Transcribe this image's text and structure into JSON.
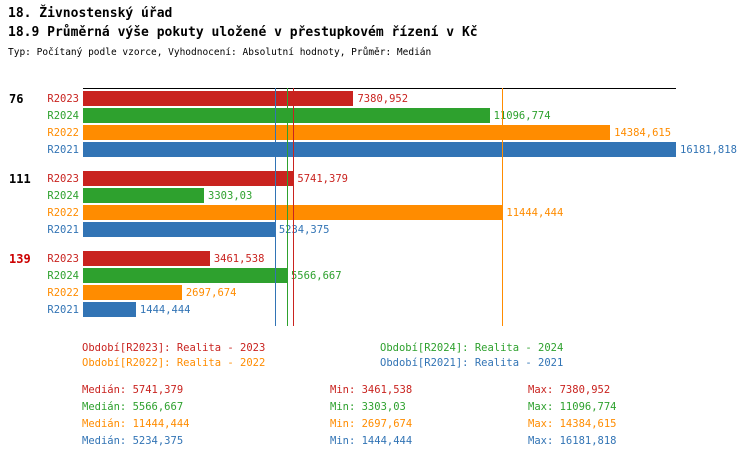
{
  "header": {
    "title": "18. Živnostenský úřad",
    "subtitle": "18.9 Průměrná výše pokuty uložené v přestupkovém řízení v Kč",
    "meta": "Typ: Počítaný podle vzorce, Vyhodnocení: Absolutní hodnoty, Průměr: Medián"
  },
  "chart_data": {
    "type": "bar",
    "orientation": "horizontal",
    "title": "18.9 Průměrná výše pokuty uložené v přestupkovém řízení v Kč",
    "xlabel": "",
    "ylabel": "",
    "xlim": [
      0,
      16181.818
    ],
    "grid": false,
    "series_colors": {
      "R2023": "#c9231f",
      "R2024": "#2ea12e",
      "R2022": "#ff8c00",
      "R2021": "#3274b5"
    },
    "groups": [
      {
        "label": "76",
        "label_color": "#000000",
        "bars": [
          {
            "series": "R2023",
            "value": 7380.952,
            "display": "7380,952"
          },
          {
            "series": "R2024",
            "value": 11096.774,
            "display": "11096,774"
          },
          {
            "series": "R2022",
            "value": 14384.615,
            "display": "14384,615"
          },
          {
            "series": "R2021",
            "value": 16181.818,
            "display": "16181,818"
          }
        ]
      },
      {
        "label": "111",
        "label_color": "#000000",
        "bars": [
          {
            "series": "R2023",
            "value": 5741.379,
            "display": "5741,379"
          },
          {
            "series": "R2024",
            "value": 3303.03,
            "display": "3303,03"
          },
          {
            "series": "R2022",
            "value": 11444.444,
            "display": "11444,444"
          },
          {
            "series": "R2021",
            "value": 5234.375,
            "display": "5234,375"
          }
        ]
      },
      {
        "label": "139",
        "label_color": "#cc0000",
        "bars": [
          {
            "series": "R2023",
            "value": 3461.538,
            "display": "3461,538"
          },
          {
            "series": "R2024",
            "value": 5566.667,
            "display": "5566,667"
          },
          {
            "series": "R2022",
            "value": 2697.674,
            "display": "2697,674"
          },
          {
            "series": "R2021",
            "value": 1444.444,
            "display": "1444,444"
          }
        ]
      }
    ],
    "median_lines": [
      {
        "series": "R2023",
        "value": 5741.379
      },
      {
        "series": "R2024",
        "value": 5566.667
      },
      {
        "series": "R2022",
        "value": 11444.444
      },
      {
        "series": "R2021",
        "value": 5234.375
      }
    ]
  },
  "legend": {
    "items": [
      {
        "series": "R2023",
        "label": "Období[R2023]: Realita - 2023"
      },
      {
        "series": "R2024",
        "label": "Období[R2024]: Realita - 2024"
      },
      {
        "series": "R2022",
        "label": "Období[R2022]: Realita - 2022"
      },
      {
        "series": "R2021",
        "label": "Období[R2021]: Realita - 2021"
      }
    ]
  },
  "stats": {
    "rows": [
      {
        "series": "R2023",
        "median": "Medián: 5741,379",
        "min": "Min: 3461,538",
        "max": "Max: 7380,952"
      },
      {
        "series": "R2024",
        "median": "Medián: 5566,667",
        "min": "Min: 3303,03",
        "max": "Max: 11096,774"
      },
      {
        "series": "R2022",
        "median": "Medián: 11444,444",
        "min": "Min: 2697,674",
        "max": "Max: 14384,615"
      },
      {
        "series": "R2021",
        "median": "Medián: 5234,375",
        "min": "Min: 1444,444",
        "max": "Max: 16181,818"
      }
    ]
  }
}
